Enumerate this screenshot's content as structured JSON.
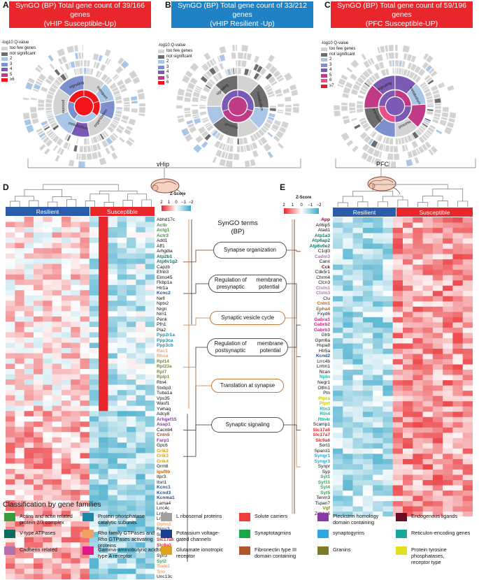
{
  "panels": {
    "A": {
      "letter": "A",
      "title_line1": "SynGO (BP) Total gene count of 39/166 genes",
      "title_line2": "(vHIP Susceptible-Up)",
      "color": "#e8262b"
    },
    "B": {
      "letter": "B",
      "title_line1": "SynGO (BP) Total gene count of 33/212 genes",
      "title_line2": "(vHIP Resilient -Up)",
      "color": "#1f82c4"
    },
    "C": {
      "letter": "C",
      "title_line1": "SynGO (BP) Total gene count of 59/196 genes",
      "title_line2": "(PFC Susceptible-UP)",
      "color": "#e8262b"
    }
  },
  "legend_A": {
    "title": "-log10 Q-value",
    "items": [
      {
        "label": "too few genes",
        "color": "#d3d3d3"
      },
      {
        "label": "not significant",
        "color": "#6d6d6d"
      },
      {
        "label": "2",
        "color": "#a9c6e6"
      },
      {
        "label": "3",
        "color": "#7e8fd0"
      },
      {
        "label": "4",
        "color": "#7b5ab4"
      },
      {
        "label": "5",
        "color": "#c13a85"
      },
      {
        "label": "≥6",
        "color": "#f2141a"
      }
    ]
  },
  "legend_B": {
    "title": "-log10 Q-value",
    "items": [
      {
        "label": "too few genes",
        "color": "#d3d3d3"
      },
      {
        "label": "not significant",
        "color": "#6d6d6d"
      },
      {
        "label": "2",
        "color": "#a9c6e6"
      },
      {
        "label": "3",
        "color": "#7e8fd0"
      },
      {
        "label": "4",
        "color": "#7b5ab4"
      },
      {
        "label": "5",
        "color": "#c13a85"
      },
      {
        "label": "6",
        "color": "#f2141a"
      }
    ]
  },
  "legend_C": {
    "title": "-log10 Q-value",
    "items": [
      {
        "label": "too few genes",
        "color": "#d3d3d3"
      },
      {
        "label": "not significant",
        "color": "#6d6d6d"
      },
      {
        "label": "2",
        "color": "#a9c6e6"
      },
      {
        "label": "3",
        "color": "#7e8fd0"
      },
      {
        "label": "4",
        "color": "#7b5ab4"
      },
      {
        "label": "5",
        "color": "#c13a85"
      },
      {
        "label": "6",
        "color": "#e8508a"
      },
      {
        "label": "≥7",
        "color": "#f2141a"
      }
    ]
  },
  "sunburst_labels": {
    "A": [
      "transport",
      "organization",
      "metabolism",
      "process",
      "signaling"
    ],
    "B": [
      "metabolism",
      "process",
      "signaling"
    ],
    "C": [
      "metabolism",
      "process",
      "transport",
      "signaling"
    ]
  },
  "regions": {
    "vhip": "vHip",
    "pfc": "PFC"
  },
  "panel_D": {
    "letter": "D",
    "resilient": "Resilient",
    "susceptible": "Susceptible",
    "zscore": "Z-Score",
    "ticks": [
      "2",
      "1",
      "0",
      "−1",
      "−2"
    ]
  },
  "panel_E": {
    "letter": "E",
    "resilient": "Resilient",
    "susceptible": "Susceptible",
    "zscore": "Z-Score",
    "ticks": [
      "2",
      "1",
      "0",
      "−1",
      "−2"
    ]
  },
  "syngo_title": "SynGO terms\n(BP)",
  "terms": [
    "Synapse organization",
    "Regulation of presynaptic\nmembrane potential",
    "Synaptic vesicle cycle",
    "Regulation of postsynaptic\nmembrane potential",
    "Translation at synapse",
    "Synaptic signaling"
  ],
  "genes_D": [
    {
      "g": "Abhd17c",
      "c": "#111"
    },
    {
      "g": "Actb",
      "c": "#3a9b3a"
    },
    {
      "g": "Actg1",
      "c": "#3a9b3a"
    },
    {
      "g": "Actr3",
      "c": "#3a9b3a"
    },
    {
      "g": "Add1",
      "c": "#111"
    },
    {
      "g": "Aff1",
      "c": "#111"
    },
    {
      "g": "Arhgdia",
      "c": "#111"
    },
    {
      "g": "Atp2b1",
      "c": "#0b7a66"
    },
    {
      "g": "Atp6v1g2",
      "c": "#0b7a66"
    },
    {
      "g": "Capzb",
      "c": "#111"
    },
    {
      "g": "Efnb3",
      "c": "#111"
    },
    {
      "g": "Elmo45",
      "c": "#111"
    },
    {
      "g": "Fkbp1a",
      "c": "#111"
    },
    {
      "g": "Htr1a",
      "c": "#111"
    },
    {
      "g": "Kcnc2",
      "c": "#1b4fa5"
    },
    {
      "g": "Nefl",
      "c": "#111"
    },
    {
      "g": "Nptx2",
      "c": "#111"
    },
    {
      "g": "Nrgn",
      "c": "#111"
    },
    {
      "g": "Nrn1",
      "c": "#111"
    },
    {
      "g": "Penk",
      "c": "#111"
    },
    {
      "g": "Pfn1",
      "c": "#111"
    },
    {
      "g": "Pla2",
      "c": "#111"
    },
    {
      "g": "Ppp2r1a",
      "c": "#1e91b8"
    },
    {
      "g": "Ppp3ca",
      "c": "#1e91b8"
    },
    {
      "g": "Ppp3cb",
      "c": "#1e91b8"
    },
    {
      "g": "Rac1",
      "c": "#f4a460"
    },
    {
      "g": "Rhoa",
      "c": "#f4a460"
    },
    {
      "g": "Rpl14",
      "c": "#7a8a2a"
    },
    {
      "g": "Rpl23a",
      "c": "#7a8a2a"
    },
    {
      "g": "Rpl7",
      "c": "#7a8a2a"
    },
    {
      "g": "Rplp1",
      "c": "#7a8a2a"
    },
    {
      "g": "Rtn4",
      "c": "#111"
    },
    {
      "g": "Stxbp3",
      "c": "#111"
    },
    {
      "g": "Tuba1a",
      "c": "#111"
    },
    {
      "g": "Vps35",
      "c": "#111"
    },
    {
      "g": "Wasf1",
      "c": "#111"
    },
    {
      "g": "Ywhaq",
      "c": "#111"
    },
    {
      "g": "Adcy8",
      "c": "#111"
    },
    {
      "g": "Arhgef15",
      "c": "#8b3aa8"
    },
    {
      "g": "Asap1",
      "c": "#8b3aa8"
    },
    {
      "g": "Cacnb4",
      "c": "#111"
    },
    {
      "g": "Cntn5",
      "c": "#a0522d"
    },
    {
      "g": "Farp1",
      "c": "#8b3aa8"
    },
    {
      "g": "Gpc6",
      "c": "#111"
    },
    {
      "g": "Grik2",
      "c": "#d4a017"
    },
    {
      "g": "Grik3",
      "c": "#d4a017"
    },
    {
      "g": "Grik4",
      "c": "#d4a017"
    },
    {
      "g": "Grm8",
      "c": "#111"
    },
    {
      "g": "Igsf9b",
      "c": "#b5651d"
    },
    {
      "g": "Itpr3",
      "c": "#111"
    },
    {
      "g": "Itsn1",
      "c": "#111"
    },
    {
      "g": "Kcnc1",
      "c": "#1b4fa5"
    },
    {
      "g": "Kcnd3",
      "c": "#1b4fa5"
    },
    {
      "g": "Kcnma1",
      "c": "#1b4fa5"
    },
    {
      "g": "Lama4",
      "c": "#111"
    },
    {
      "g": "Lrrc4c",
      "c": "#111"
    },
    {
      "g": "Lrrk2",
      "c": "#111"
    },
    {
      "g": "Lrrtm3",
      "c": "#111"
    },
    {
      "g": "Ophn1",
      "c": "#f4a460"
    },
    {
      "g": "Rims3",
      "c": "#111"
    },
    {
      "g": "Scn1a",
      "c": "#111"
    },
    {
      "g": "Slc17a6",
      "c": "#e8262b"
    },
    {
      "g": "Slc8a3",
      "c": "#e8262b"
    },
    {
      "g": "Stxbp4",
      "c": "#111"
    },
    {
      "g": "Syn3",
      "c": "#111"
    },
    {
      "g": "Syt2",
      "c": "#2aa84a"
    },
    {
      "g": "Tiam1",
      "c": "#f4a460"
    },
    {
      "g": "Trio",
      "c": "#f4a460"
    },
    {
      "g": "Unc13c",
      "c": "#111"
    }
  ],
  "genes_E": [
    {
      "g": "App",
      "c": "#7a0026"
    },
    {
      "g": "Arl6ip5",
      "c": "#111"
    },
    {
      "g": "Atad1",
      "c": "#111"
    },
    {
      "g": "Atp1a3",
      "c": "#0b7a66"
    },
    {
      "g": "Atp6ap2",
      "c": "#0b7a66"
    },
    {
      "g": "Atp6v0e2",
      "c": "#0b7a66"
    },
    {
      "g": "C1ql3",
      "c": "#111"
    },
    {
      "g": "Cadm3",
      "c": "#c070b0"
    },
    {
      "g": "Canx",
      "c": "#111"
    },
    {
      "g": "Cck",
      "c": "#7a0026"
    },
    {
      "g": "Cdk5r1",
      "c": "#111"
    },
    {
      "g": "Chrm4",
      "c": "#111"
    },
    {
      "g": "Clcn3",
      "c": "#111"
    },
    {
      "g": "Clstn1",
      "c": "#c070b0"
    },
    {
      "g": "Clstn3",
      "c": "#c070b0"
    },
    {
      "g": "Clu",
      "c": "#111"
    },
    {
      "g": "Cntn1",
      "c": "#b5651d"
    },
    {
      "g": "Epha4",
      "c": "#b5651d"
    },
    {
      "g": "Fxyd6",
      "c": "#111"
    },
    {
      "g": "Gabra1",
      "c": "#e0188a"
    },
    {
      "g": "Gabrb2",
      "c": "#e0188a"
    },
    {
      "g": "Gabrb3",
      "c": "#e0188a"
    },
    {
      "g": "Glrb",
      "c": "#111"
    },
    {
      "g": "Gpm6a",
      "c": "#111"
    },
    {
      "g": "Hspa8",
      "c": "#111"
    },
    {
      "g": "Htr5a",
      "c": "#111"
    },
    {
      "g": "Kcnd2",
      "c": "#1b4fa5"
    },
    {
      "g": "Lrrc4b",
      "c": "#111"
    },
    {
      "g": "Lrrtm1",
      "c": "#111"
    },
    {
      "g": "Ncan",
      "c": "#111"
    },
    {
      "g": "Nptn",
      "c": "#16b5a3"
    },
    {
      "g": "Negr1",
      "c": "#111"
    },
    {
      "g": "Olfm1",
      "c": "#111"
    },
    {
      "g": "Ptn",
      "c": "#111"
    },
    {
      "g": "Ptpra",
      "c": "#c8c800"
    },
    {
      "g": "Ptprt",
      "c": "#c8c800"
    },
    {
      "g": "Rtn3",
      "c": "#16b5a3"
    },
    {
      "g": "Rtn4",
      "c": "#16b5a3"
    },
    {
      "g": "Rtn4r",
      "c": "#16b5a3"
    },
    {
      "g": "Scamp1",
      "c": "#111"
    },
    {
      "g": "Slc17a6",
      "c": "#e8262b"
    },
    {
      "g": "Slc17a7",
      "c": "#e8262b"
    },
    {
      "g": "Slc9a6",
      "c": "#e8262b"
    },
    {
      "g": "Sort1",
      "c": "#111"
    },
    {
      "g": "Sparcl1",
      "c": "#111"
    },
    {
      "g": "Syngr1",
      "c": "#2aa0d8"
    },
    {
      "g": "Syngr3",
      "c": "#2aa0d8"
    },
    {
      "g": "Synpr",
      "c": "#111"
    },
    {
      "g": "Syp",
      "c": "#111"
    },
    {
      "g": "Syt1",
      "c": "#2aa84a"
    },
    {
      "g": "Syt11",
      "c": "#2aa84a"
    },
    {
      "g": "Syt4",
      "c": "#2aa84a"
    },
    {
      "g": "Syt5",
      "c": "#2aa84a"
    },
    {
      "g": "Tenm3",
      "c": "#111"
    },
    {
      "g": "Tspan7",
      "c": "#111"
    },
    {
      "g": "Vgf",
      "c": "#7a8a2a"
    },
    {
      "g": "Zdhhc5",
      "c": "#111"
    }
  ],
  "classification": {
    "title": "Classification by gene families",
    "items": [
      {
        "label": "Actins and actin related\nprotein 2/3 complex",
        "color": "#3a9b3a"
      },
      {
        "label": "V-type ATPases",
        "color": "#0b6b5e"
      },
      {
        "label": "Cadherin related",
        "color": "#b36fae"
      },
      {
        "label": "Protein phosphatase\ncatalytic subunits",
        "color": "#1e85a8"
      },
      {
        "label": "Rho family GTPases and\nRho GTPases activating proteins",
        "color": "#f2a060"
      },
      {
        "label": "Gamma-aminobutyric acid\ntype A receptor",
        "color": "#e0188a"
      },
      {
        "label": "L ribosomal proteins",
        "color": "#a0a0a0"
      },
      {
        "label": "Potassium voltage-\ngated channels",
        "color": "#1b3f8f"
      },
      {
        "label": "Glutamate ionotropic receptor",
        "color": "#e0a020"
      },
      {
        "label": "Solute carriers",
        "color": "#f03c3c"
      },
      {
        "label": "Synaptotagmins",
        "color": "#18a84a"
      },
      {
        "label": "Fibronectin type III\ndomain containing",
        "color": "#b0582a"
      },
      {
        "label": "Pleckstrin homology\ndomain containing",
        "color": "#8a3aa8"
      },
      {
        "label": "synaptogyrins",
        "color": "#2aa8e0"
      },
      {
        "label": "Granins",
        "color": "#7a7a28"
      },
      {
        "label": "Endogenous ligands",
        "color": "#6a0c26"
      },
      {
        "label": "Reticulon-encoding genes",
        "color": "#16a89a"
      },
      {
        "label": "Protein tyrosine phosphatases,\nreceptor type",
        "color": "#e0e020"
      }
    ]
  }
}
